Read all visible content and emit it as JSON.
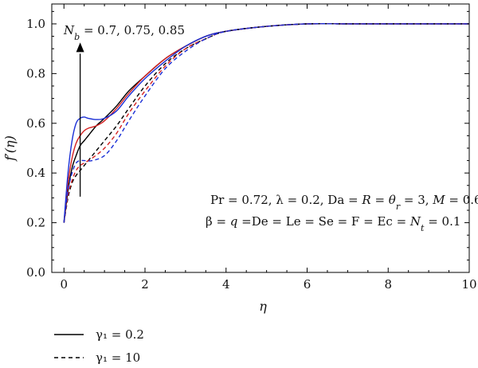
{
  "chart_data": {
    "type": "line",
    "xlabel": "η",
    "ylabel": "f′(η)",
    "xlim": [
      -0.3,
      10
    ],
    "ylim": [
      0.0,
      1.08
    ],
    "xticks": [
      0,
      2,
      4,
      6,
      8,
      10
    ],
    "yticks": [
      0.0,
      0.2,
      0.4,
      0.6,
      0.8,
      1.0
    ],
    "xtick_labels": [
      "0",
      "2",
      "4",
      "6",
      "8",
      "10"
    ],
    "ytick_labels": [
      "0.0",
      "0.2",
      "0.4",
      "0.6",
      "0.8",
      "1.0"
    ],
    "grid": false,
    "annotations": {
      "nb_arrow_label": "N_b = 0.7, 0.75, 0.85",
      "params_line1": "Pr = 0.72, λ = 0.2, Da = R = θ_r = 3, M = 0.6,",
      "params_line2": "β = q =De = Le = Se = F = Ec = N_t = 0.1"
    },
    "legend": {
      "placement": "bottom-left",
      "entries": [
        {
          "style": "solid",
          "label": "γ₁ = 0.2"
        },
        {
          "style": "dashed",
          "label": "γ₁ = 10"
        }
      ]
    },
    "colors": {
      "black": "#000000",
      "red": "#d42020",
      "blue": "#1a2fd6"
    },
    "series": [
      {
        "color": "black",
        "style": "solid",
        "x": [
          0,
          0.1,
          0.2,
          0.3,
          0.4,
          0.5,
          0.6,
          0.8,
          1.0,
          1.3,
          1.6,
          2.0,
          2.5,
          3.0,
          3.5,
          4.0,
          5.0,
          6.0,
          7.0,
          8.0,
          10.0
        ],
        "y": [
          0.2,
          0.33,
          0.42,
          0.47,
          0.51,
          0.53,
          0.55,
          0.59,
          0.62,
          0.67,
          0.73,
          0.79,
          0.86,
          0.91,
          0.95,
          0.97,
          0.99,
          1.0,
          1.0,
          1.0,
          1.0
        ]
      },
      {
        "color": "red",
        "style": "solid",
        "x": [
          0,
          0.1,
          0.2,
          0.3,
          0.4,
          0.5,
          0.6,
          0.8,
          1.0,
          1.3,
          1.6,
          2.0,
          2.5,
          3.0,
          3.5,
          4.0,
          5.0,
          6.0,
          7.0,
          8.0,
          10.0
        ],
        "y": [
          0.2,
          0.36,
          0.46,
          0.52,
          0.55,
          0.57,
          0.58,
          0.59,
          0.61,
          0.66,
          0.72,
          0.79,
          0.86,
          0.91,
          0.95,
          0.97,
          0.99,
          1.0,
          1.0,
          1.0,
          1.0
        ]
      },
      {
        "color": "blue",
        "style": "solid",
        "x": [
          0,
          0.1,
          0.2,
          0.3,
          0.4,
          0.5,
          0.6,
          0.8,
          1.0,
          1.3,
          1.6,
          2.0,
          2.5,
          3.0,
          3.5,
          4.0,
          5.0,
          6.0,
          7.0,
          8.0,
          10.0
        ],
        "y": [
          0.2,
          0.4,
          0.53,
          0.6,
          0.62,
          0.625,
          0.62,
          0.615,
          0.62,
          0.65,
          0.71,
          0.78,
          0.85,
          0.91,
          0.95,
          0.97,
          0.99,
          1.0,
          1.0,
          1.0,
          1.0
        ]
      },
      {
        "color": "black",
        "style": "dashed",
        "x": [
          0,
          0.1,
          0.2,
          0.3,
          0.4,
          0.5,
          0.7,
          1.0,
          1.3,
          1.6,
          2.0,
          2.5,
          3.0,
          3.5,
          4.0,
          5.0,
          6.0,
          7.0,
          8.0,
          10.0
        ],
        "y": [
          0.2,
          0.3,
          0.36,
          0.39,
          0.41,
          0.43,
          0.47,
          0.53,
          0.59,
          0.66,
          0.75,
          0.84,
          0.9,
          0.94,
          0.97,
          0.99,
          1.0,
          1.0,
          1.0,
          1.0
        ]
      },
      {
        "color": "red",
        "style": "dashed",
        "x": [
          0,
          0.1,
          0.2,
          0.3,
          0.4,
          0.5,
          0.7,
          1.0,
          1.3,
          1.6,
          2.0,
          2.5,
          3.0,
          3.5,
          4.0,
          5.0,
          6.0,
          7.0,
          8.0,
          10.0
        ],
        "y": [
          0.2,
          0.31,
          0.37,
          0.41,
          0.43,
          0.44,
          0.46,
          0.5,
          0.56,
          0.64,
          0.73,
          0.83,
          0.9,
          0.94,
          0.97,
          0.99,
          1.0,
          1.0,
          1.0,
          1.0
        ]
      },
      {
        "color": "blue",
        "style": "dashed",
        "x": [
          0,
          0.1,
          0.2,
          0.3,
          0.4,
          0.5,
          0.7,
          1.0,
          1.3,
          1.6,
          2.0,
          2.5,
          3.0,
          3.5,
          4.0,
          5.0,
          6.0,
          7.0,
          8.0,
          10.0
        ],
        "y": [
          0.2,
          0.33,
          0.4,
          0.44,
          0.45,
          0.45,
          0.45,
          0.47,
          0.53,
          0.61,
          0.71,
          0.82,
          0.89,
          0.94,
          0.97,
          0.99,
          1.0,
          1.0,
          1.0,
          1.0
        ]
      }
    ]
  }
}
